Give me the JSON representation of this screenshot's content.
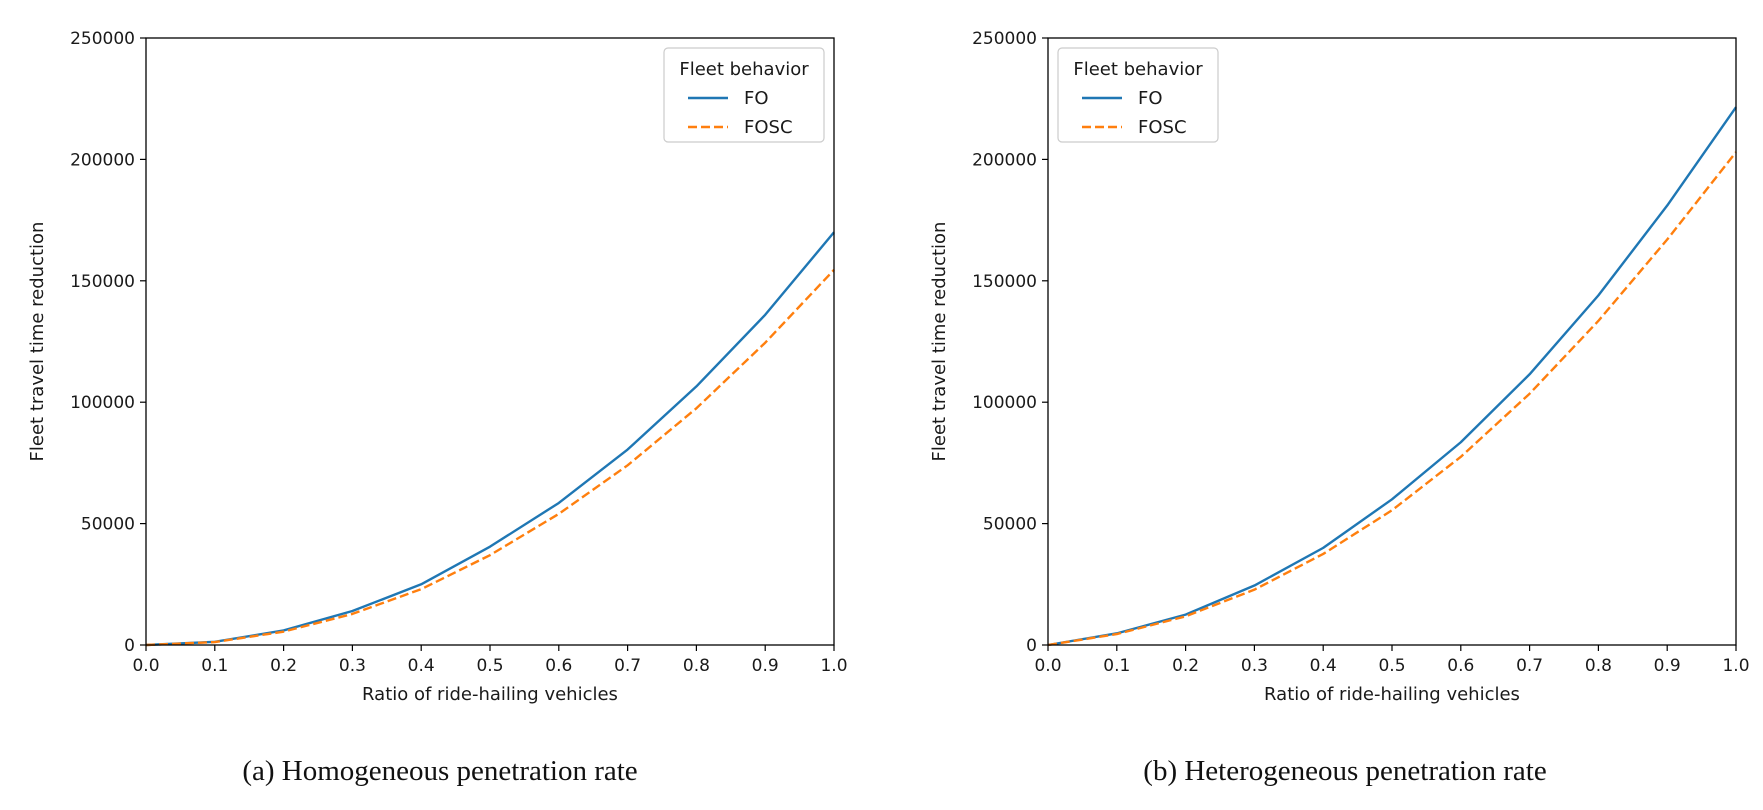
{
  "chart_data": [
    {
      "type": "line",
      "caption": "(a) Homogeneous penetration rate",
      "xlabel": "Ratio of ride-hailing vehicles",
      "ylabel": "Fleet travel time reduction",
      "xlim": [
        0,
        1
      ],
      "ylim": [
        0,
        250000
      ],
      "xticks": [
        0.0,
        0.1,
        0.2,
        0.3,
        0.4,
        0.5,
        0.6,
        0.7,
        0.8,
        0.9,
        1.0
      ],
      "xtick_labels": [
        "0.0",
        "0.1",
        "0.2",
        "0.3",
        "0.4",
        "0.5",
        "0.6",
        "0.7",
        "0.8",
        "0.9",
        "1.0"
      ],
      "yticks": [
        0,
        50000,
        100000,
        150000,
        200000,
        250000
      ],
      "ytick_labels": [
        "0",
        "50000",
        "100000",
        "150000",
        "200000",
        "250000"
      ],
      "grid": false,
      "legend": {
        "title": "Fleet behavior",
        "placement": "top-right"
      },
      "x": [
        0.0,
        0.1,
        0.2,
        0.3,
        0.4,
        0.5,
        0.6,
        0.7,
        0.8,
        0.9,
        1.0
      ],
      "series": [
        {
          "name": "FO",
          "color": "#1f77b4",
          "style": "solid",
          "values": [
            0,
            1300,
            6000,
            14000,
            25000,
            40500,
            58500,
            80500,
            106500,
            136000,
            170000
          ]
        },
        {
          "name": "FOSC",
          "color": "#ff7f0e",
          "style": "dashed",
          "values": [
            0,
            1200,
            5500,
            12800,
            23000,
            37000,
            54000,
            74000,
            97500,
            124500,
            154500
          ]
        }
      ]
    },
    {
      "type": "line",
      "caption": "(b) Heterogeneous penetration rate",
      "xlabel": "Ratio of ride-hailing vehicles",
      "ylabel": "Fleet travel time reduction",
      "xlim": [
        0,
        1
      ],
      "ylim": [
        0,
        250000
      ],
      "xticks": [
        0.0,
        0.1,
        0.2,
        0.3,
        0.4,
        0.5,
        0.6,
        0.7,
        0.8,
        0.9,
        1.0
      ],
      "xtick_labels": [
        "0.0",
        "0.1",
        "0.2",
        "0.3",
        "0.4",
        "0.5",
        "0.6",
        "0.7",
        "0.8",
        "0.9",
        "1.0"
      ],
      "yticks": [
        0,
        50000,
        100000,
        150000,
        200000,
        250000
      ],
      "ytick_labels": [
        "0",
        "50000",
        "100000",
        "150000",
        "200000",
        "250000"
      ],
      "grid": false,
      "legend": {
        "title": "Fleet behavior",
        "placement": "top-left"
      },
      "x": [
        0.0,
        0.1,
        0.2,
        0.3,
        0.4,
        0.5,
        0.6,
        0.7,
        0.8,
        0.9,
        1.0
      ],
      "series": [
        {
          "name": "FO",
          "color": "#1f77b4",
          "style": "solid",
          "values": [
            0,
            4800,
            12500,
            24500,
            40000,
            60000,
            83500,
            111500,
            144000,
            181000,
            221500
          ]
        },
        {
          "name": "FOSC",
          "color": "#ff7f0e",
          "style": "dashed",
          "values": [
            0,
            4500,
            11800,
            22800,
            37500,
            55500,
            77500,
            103500,
            133500,
            167000,
            203000
          ]
        }
      ]
    }
  ]
}
